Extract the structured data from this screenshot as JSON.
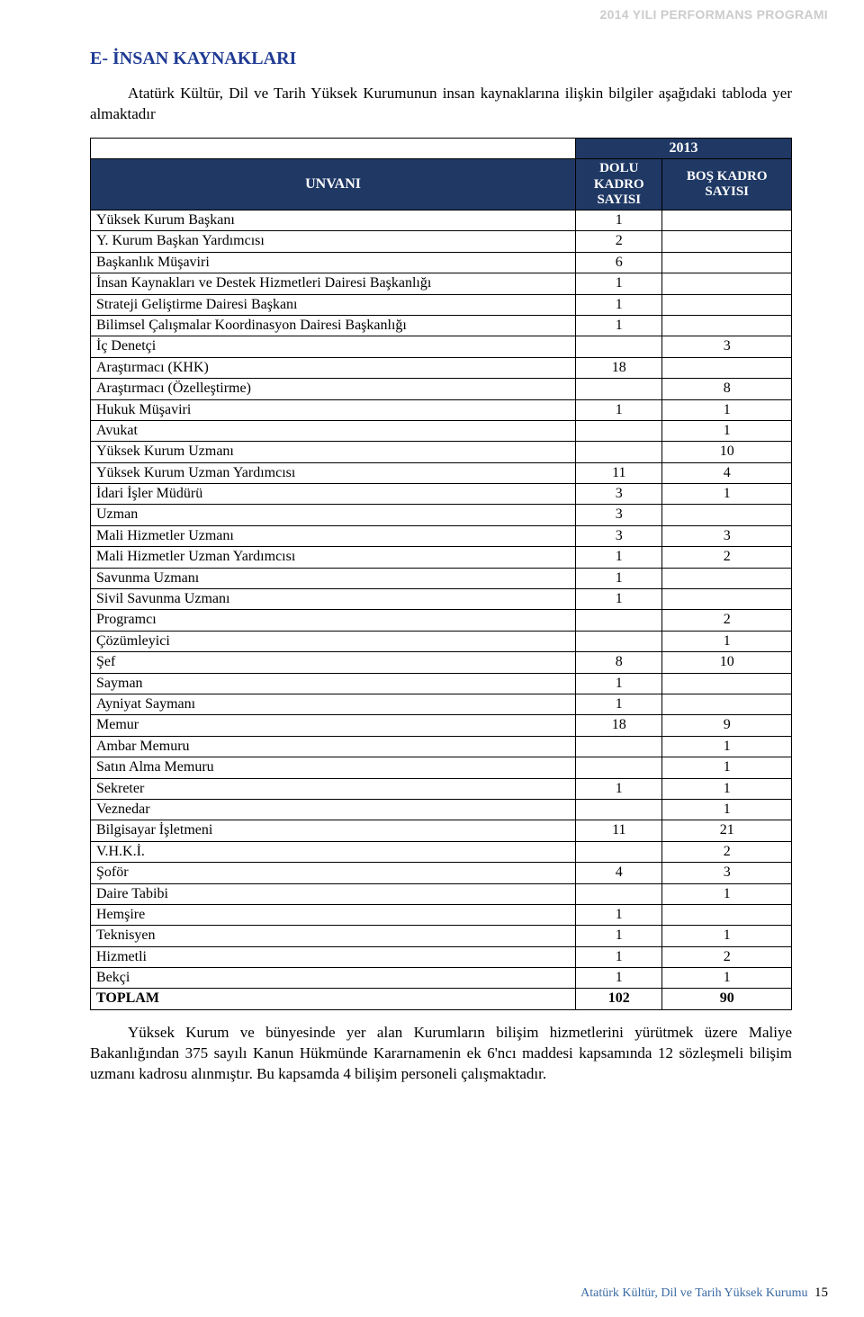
{
  "header_watermark": "2014 YILI PERFORMANS PROGRAMI",
  "section_title": "E- İNSAN KAYNAKLARI",
  "intro_paragraph": "Atatürk Kültür, Dil ve Tarih Yüksek Kurumunun insan kaynaklarına ilişkin bilgiler aşağıdaki tabloda yer almaktadır",
  "table": {
    "year_header": "2013",
    "col_unvani": "UNVANI",
    "col_dolu_l1": "DOLU",
    "col_dolu_l2": "KADRO",
    "col_dolu_l3": "SAYISI",
    "col_bos_l1": "BOŞ KADRO",
    "col_bos_l2": "SAYISI",
    "rows": [
      {
        "label": "Yüksek Kurum Başkanı",
        "dolu": "1",
        "bos": ""
      },
      {
        "label": "Y. Kurum Başkan Yardımcısı",
        "dolu": "2",
        "bos": ""
      },
      {
        "label": "Başkanlık Müşaviri",
        "dolu": "6",
        "bos": ""
      },
      {
        "label": "İnsan Kaynakları ve Destek Hizmetleri Dairesi Başkanlığı",
        "dolu": "1",
        "bos": ""
      },
      {
        "label": "Strateji Geliştirme Dairesi Başkanı",
        "dolu": "1",
        "bos": ""
      },
      {
        "label": "Bilimsel Çalışmalar Koordinasyon Dairesi Başkanlığı",
        "dolu": "1",
        "bos": ""
      },
      {
        "label": "İç Denetçi",
        "dolu": "",
        "bos": "3"
      },
      {
        "label": "Araştırmacı (KHK)",
        "dolu": "18",
        "bos": ""
      },
      {
        "label": "Araştırmacı (Özelleştirme)",
        "dolu": "",
        "bos": "8"
      },
      {
        "label": "Hukuk Müşaviri",
        "dolu": "1",
        "bos": "1"
      },
      {
        "label": "Avukat",
        "dolu": "",
        "bos": "1"
      },
      {
        "label": "Yüksek Kurum Uzmanı",
        "dolu": "",
        "bos": "10"
      },
      {
        "label": "Yüksek Kurum Uzman Yardımcısı",
        "dolu": "11",
        "bos": "4"
      },
      {
        "label": "İdari İşler Müdürü",
        "dolu": "3",
        "bos": "1"
      },
      {
        "label": "Uzman",
        "dolu": "3",
        "bos": ""
      },
      {
        "label": "Mali Hizmetler Uzmanı",
        "dolu": "3",
        "bos": "3"
      },
      {
        "label": "Mali Hizmetler Uzman Yardımcısı",
        "dolu": "1",
        "bos": "2"
      },
      {
        "label": "Savunma Uzmanı",
        "dolu": "1",
        "bos": ""
      },
      {
        "label": "Sivil Savunma Uzmanı",
        "dolu": "1",
        "bos": ""
      },
      {
        "label": "Programcı",
        "dolu": "",
        "bos": "2"
      },
      {
        "label": "Çözümleyici",
        "dolu": "",
        "bos": "1"
      },
      {
        "label": "Şef",
        "dolu": "8",
        "bos": "10"
      },
      {
        "label": "Sayman",
        "dolu": "1",
        "bos": ""
      },
      {
        "label": "Ayniyat Saymanı",
        "dolu": "1",
        "bos": ""
      },
      {
        "label": "Memur",
        "dolu": "18",
        "bos": "9"
      },
      {
        "label": "Ambar Memuru",
        "dolu": "",
        "bos": "1"
      },
      {
        "label": "Satın Alma Memuru",
        "dolu": "",
        "bos": "1"
      },
      {
        "label": "Sekreter",
        "dolu": "1",
        "bos": "1"
      },
      {
        "label": "Veznedar",
        "dolu": "",
        "bos": "1"
      },
      {
        "label": "Bilgisayar İşletmeni",
        "dolu": "11",
        "bos": "21"
      },
      {
        "label": "V.H.K.İ.",
        "dolu": "",
        "bos": "2"
      },
      {
        "label": "Şoför",
        "dolu": "4",
        "bos": "3"
      },
      {
        "label": "Daire Tabibi",
        "dolu": "",
        "bos": "1"
      },
      {
        "label": "Hemşire",
        "dolu": "1",
        "bos": ""
      },
      {
        "label": "Teknisyen",
        "dolu": "1",
        "bos": "1"
      },
      {
        "label": "Hizmetli",
        "dolu": "1",
        "bos": "2"
      },
      {
        "label": "Bekçi",
        "dolu": "1",
        "bos": "1"
      }
    ],
    "total": {
      "label": "TOPLAM",
      "dolu": "102",
      "bos": "90"
    }
  },
  "closing_paragraph": "Yüksek Kurum ve bünyesinde yer alan Kurumların bilişim hizmetlerini yürütmek üzere Maliye Bakanlığından 375 sayılı Kanun Hükmünde Kararnamenin ek 6'ncı maddesi kapsamında 12 sözleşmeli bilişim uzmanı kadrosu alınmıştır. Bu kapsamda 4 bilişim personeli çalışmaktadır.",
  "footer_text": "Atatürk Kültür, Dil ve Tarih Yüksek Kurumu",
  "page_number": "15",
  "colors": {
    "title_color": "#1f3a93",
    "table_header_bg": "#1f3864",
    "table_header_fg": "#ffffff",
    "watermark_color": "#cccccc",
    "footer_color": "#3a6aa3"
  }
}
